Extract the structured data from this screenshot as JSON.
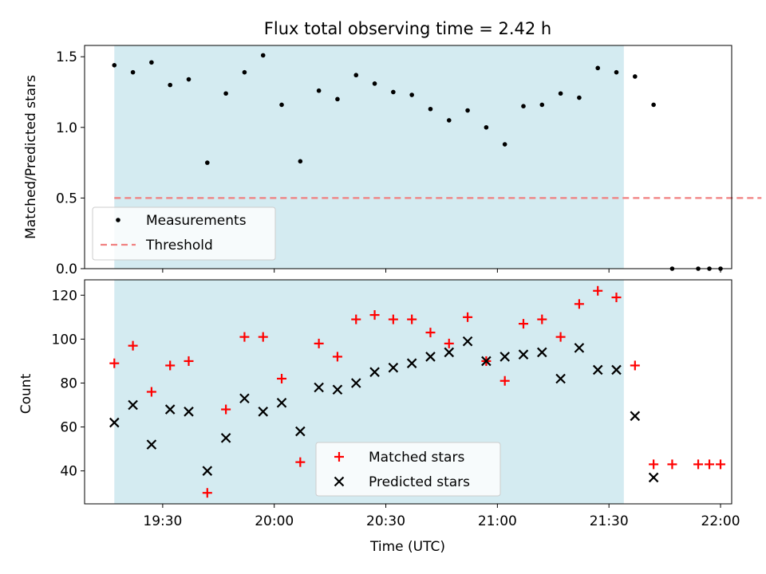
{
  "chart_data": {
    "title": "Flux total observing time = 2.42 h",
    "xlabel": "Time (UTC)",
    "x_ticks": [
      "19:30",
      "20:00",
      "20:30",
      "21:00",
      "21:30",
      "22:00"
    ],
    "x_range": [
      "19:09",
      "22:03"
    ],
    "observing_window": [
      "19:17",
      "21:34"
    ],
    "colors": {
      "window": "#d4ebf1",
      "threshold": "#f08080",
      "matched": "#ff0000",
      "predicted": "#000000",
      "measurements": "#000000"
    },
    "top": {
      "type": "scatter",
      "ylabel": "Matched/Predicted stars",
      "ylim": [
        0,
        1.58
      ],
      "y_ticks": [
        "0.0",
        "0.5",
        "1.0",
        "1.5"
      ],
      "legend_position": "lower-left",
      "threshold": {
        "name": "Threshold",
        "value": 0.5,
        "x_range": [
          "19:17",
          "22:11"
        ]
      },
      "measurements": {
        "name": "Measurements",
        "points": [
          {
            "t": "19:17",
            "v": 1.44
          },
          {
            "t": "19:22",
            "v": 1.39
          },
          {
            "t": "19:27",
            "v": 1.46
          },
          {
            "t": "19:32",
            "v": 1.3
          },
          {
            "t": "19:37",
            "v": 1.34
          },
          {
            "t": "19:42",
            "v": 0.75
          },
          {
            "t": "19:47",
            "v": 1.24
          },
          {
            "t": "19:52",
            "v": 1.39
          },
          {
            "t": "19:57",
            "v": 1.51
          },
          {
            "t": "20:02",
            "v": 1.16
          },
          {
            "t": "20:07",
            "v": 0.76
          },
          {
            "t": "20:12",
            "v": 1.26
          },
          {
            "t": "20:17",
            "v": 1.2
          },
          {
            "t": "20:22",
            "v": 1.37
          },
          {
            "t": "20:27",
            "v": 1.31
          },
          {
            "t": "20:32",
            "v": 1.25
          },
          {
            "t": "20:37",
            "v": 1.23
          },
          {
            "t": "20:42",
            "v": 1.13
          },
          {
            "t": "20:47",
            "v": 1.05
          },
          {
            "t": "20:52",
            "v": 1.12
          },
          {
            "t": "20:57",
            "v": 1.0
          },
          {
            "t": "21:02",
            "v": 0.88
          },
          {
            "t": "21:07",
            "v": 1.15
          },
          {
            "t": "21:12",
            "v": 1.16
          },
          {
            "t": "21:17",
            "v": 1.24
          },
          {
            "t": "21:22",
            "v": 1.21
          },
          {
            "t": "21:27",
            "v": 1.42
          },
          {
            "t": "21:32",
            "v": 1.39
          },
          {
            "t": "21:37",
            "v": 1.36
          },
          {
            "t": "21:42",
            "v": 1.16
          },
          {
            "t": "21:47",
            "v": 0.0
          },
          {
            "t": "21:54",
            "v": 0.0
          },
          {
            "t": "21:57",
            "v": 0.0
          },
          {
            "t": "22:00",
            "v": 0.0
          }
        ]
      }
    },
    "bottom": {
      "type": "scatter",
      "ylabel": "Count",
      "ylim": [
        25,
        127
      ],
      "y_ticks": [
        "40",
        "60",
        "80",
        "100",
        "120"
      ],
      "legend_position": "lower-center",
      "series": [
        {
          "name": "Matched stars",
          "marker": "plus",
          "points": [
            {
              "t": "19:17",
              "v": 89
            },
            {
              "t": "19:22",
              "v": 97
            },
            {
              "t": "19:27",
              "v": 76
            },
            {
              "t": "19:32",
              "v": 88
            },
            {
              "t": "19:37",
              "v": 90
            },
            {
              "t": "19:42",
              "v": 30
            },
            {
              "t": "19:47",
              "v": 68
            },
            {
              "t": "19:52",
              "v": 101
            },
            {
              "t": "19:57",
              "v": 101
            },
            {
              "t": "20:02",
              "v": 82
            },
            {
              "t": "20:07",
              "v": 44
            },
            {
              "t": "20:12",
              "v": 98
            },
            {
              "t": "20:17",
              "v": 92
            },
            {
              "t": "20:22",
              "v": 109
            },
            {
              "t": "20:27",
              "v": 111
            },
            {
              "t": "20:32",
              "v": 109
            },
            {
              "t": "20:37",
              "v": 109
            },
            {
              "t": "20:42",
              "v": 103
            },
            {
              "t": "20:47",
              "v": 98
            },
            {
              "t": "20:52",
              "v": 110
            },
            {
              "t": "20:57",
              "v": 90
            },
            {
              "t": "21:02",
              "v": 81
            },
            {
              "t": "21:07",
              "v": 107
            },
            {
              "t": "21:12",
              "v": 109
            },
            {
              "t": "21:17",
              "v": 101
            },
            {
              "t": "21:22",
              "v": 116
            },
            {
              "t": "21:27",
              "v": 122
            },
            {
              "t": "21:32",
              "v": 119
            },
            {
              "t": "21:37",
              "v": 88
            },
            {
              "t": "21:42",
              "v": 43
            },
            {
              "t": "21:47",
              "v": 43
            },
            {
              "t": "21:54",
              "v": 43
            },
            {
              "t": "21:57",
              "v": 43
            },
            {
              "t": "22:00",
              "v": 43
            }
          ]
        },
        {
          "name": "Predicted stars",
          "marker": "x",
          "points": [
            {
              "t": "19:17",
              "v": 62
            },
            {
              "t": "19:22",
              "v": 70
            },
            {
              "t": "19:27",
              "v": 52
            },
            {
              "t": "19:32",
              "v": 68
            },
            {
              "t": "19:37",
              "v": 67
            },
            {
              "t": "19:42",
              "v": 40
            },
            {
              "t": "19:47",
              "v": 55
            },
            {
              "t": "19:52",
              "v": 73
            },
            {
              "t": "19:57",
              "v": 67
            },
            {
              "t": "20:02",
              "v": 71
            },
            {
              "t": "20:07",
              "v": 58
            },
            {
              "t": "20:12",
              "v": 78
            },
            {
              "t": "20:17",
              "v": 77
            },
            {
              "t": "20:22",
              "v": 80
            },
            {
              "t": "20:27",
              "v": 85
            },
            {
              "t": "20:32",
              "v": 87
            },
            {
              "t": "20:37",
              "v": 89
            },
            {
              "t": "20:42",
              "v": 92
            },
            {
              "t": "20:47",
              "v": 94
            },
            {
              "t": "20:52",
              "v": 99
            },
            {
              "t": "20:57",
              "v": 90
            },
            {
              "t": "21:02",
              "v": 92
            },
            {
              "t": "21:07",
              "v": 93
            },
            {
              "t": "21:12",
              "v": 94
            },
            {
              "t": "21:17",
              "v": 82
            },
            {
              "t": "21:22",
              "v": 96
            },
            {
              "t": "21:27",
              "v": 86
            },
            {
              "t": "21:32",
              "v": 86
            },
            {
              "t": "21:37",
              "v": 65
            },
            {
              "t": "21:42",
              "v": 37
            }
          ]
        }
      ]
    }
  }
}
